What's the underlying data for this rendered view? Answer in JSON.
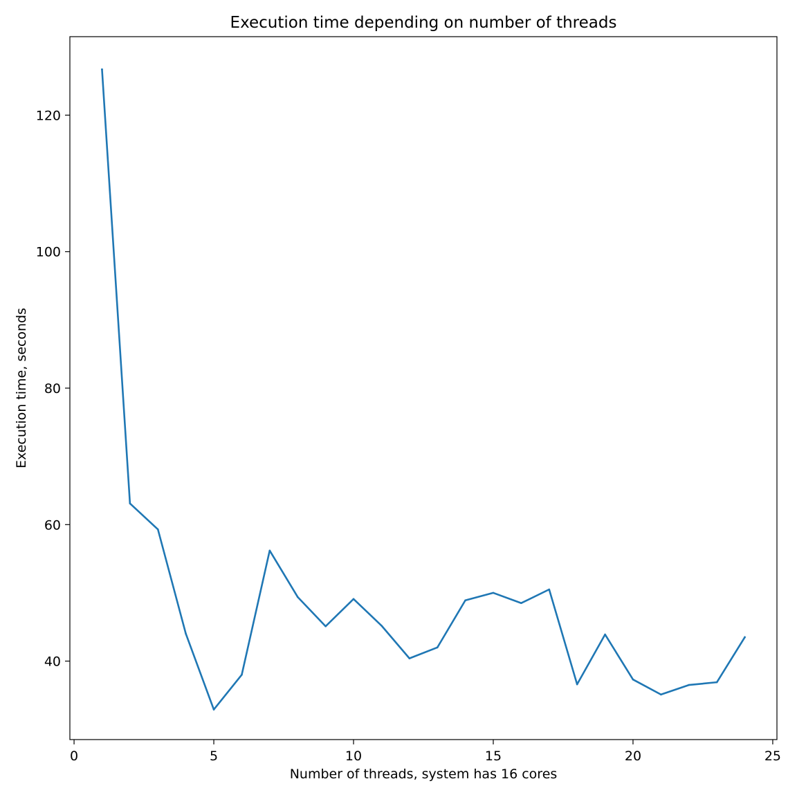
{
  "chart_data": {
    "type": "line",
    "title": "Execution time depending on number of threads",
    "xlabel": "Number of threads, system has 16 cores",
    "ylabel": "Execution time, seconds",
    "xlim": [
      -0.15,
      25.15
    ],
    "ylim": [
      28.5,
      131.5
    ],
    "xticks": [
      0,
      5,
      10,
      15,
      20,
      25
    ],
    "yticks": [
      40,
      60,
      80,
      100,
      120
    ],
    "grid": false,
    "series": [
      {
        "color": "#1f77b4",
        "x": [
          1,
          2,
          3,
          4,
          5,
          6,
          7,
          8,
          9,
          10,
          11,
          12,
          13,
          14,
          15,
          16,
          17,
          18,
          19,
          20,
          21,
          22,
          23,
          24
        ],
        "y": [
          126.7,
          63.1,
          59.3,
          44.0,
          32.9,
          38.0,
          56.2,
          49.4,
          45.1,
          49.1,
          45.2,
          40.4,
          42.0,
          48.9,
          50.0,
          48.5,
          50.5,
          36.6,
          43.9,
          37.3,
          35.1,
          36.5,
          36.9,
          43.5
        ]
      }
    ]
  }
}
